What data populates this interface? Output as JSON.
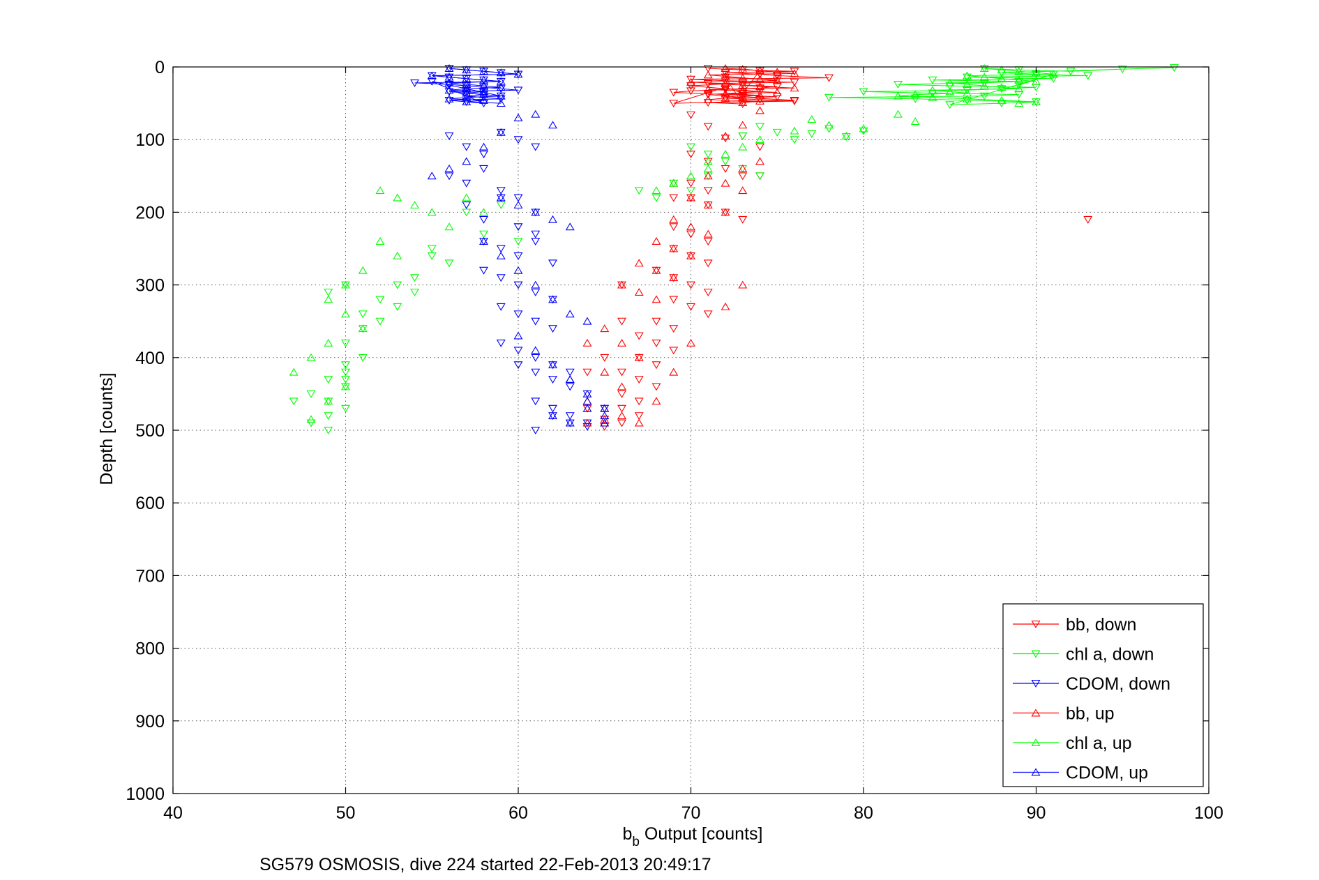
{
  "caption": "SG579 OSMOSIS, dive 224 started 22-Feb-2013 20:49:17",
  "chart_data": {
    "type": "scatter",
    "title": "",
    "xlabel_main": "b",
    "xlabel_sub": "b",
    "xlabel_rest": " Output [counts]",
    "ylabel": "Depth [counts]",
    "xlim": [
      40,
      100
    ],
    "ylim": [
      0,
      1000
    ],
    "y_reversed": true,
    "grid": true,
    "legend_position": "bottom-right",
    "xticks": [
      "40",
      "50",
      "60",
      "70",
      "80",
      "90",
      "100"
    ],
    "yticks": [
      "0",
      "100",
      "200",
      "300",
      "400",
      "500",
      "600",
      "700",
      "800",
      "900",
      "1000"
    ],
    "series": [
      {
        "name": "bb, down",
        "color": "#ff0000",
        "marker": "triangle-down",
        "surface_x": [
          71,
          73,
          76,
          72,
          74,
          75,
          78,
          70,
          72,
          76,
          71,
          73,
          75,
          74,
          72,
          70,
          69,
          71,
          73,
          75,
          72,
          74,
          76,
          71,
          73,
          72,
          75,
          73,
          70,
          72,
          74,
          71,
          73,
          76,
          69,
          72,
          73,
          74
        ],
        "surface_y": [
          2,
          4,
          6,
          8,
          10,
          12,
          15,
          17,
          19,
          21,
          23,
          25,
          27,
          29,
          31,
          33,
          35,
          37,
          39,
          41,
          43,
          45,
          47,
          49,
          51,
          14,
          18,
          22,
          26,
          30,
          34,
          38,
          42,
          46,
          50,
          28,
          36,
          5
        ],
        "x": [
          70,
          71,
          72,
          73,
          74,
          70,
          71,
          72,
          73,
          74,
          70,
          71,
          69,
          70,
          71,
          72,
          73,
          69,
          70,
          71,
          69,
          70,
          71,
          68,
          69,
          70,
          71,
          69,
          70,
          71,
          68,
          69,
          67,
          68,
          69,
          67,
          68,
          66,
          67,
          68,
          66,
          67,
          66,
          67,
          65,
          66,
          66,
          65,
          66,
          64,
          65,
          64,
          93
        ],
        "y": [
          66,
          82,
          98,
          95,
          110,
          120,
          130,
          140,
          150,
          150,
          160,
          170,
          180,
          180,
          190,
          200,
          210,
          220,
          230,
          240,
          250,
          260,
          270,
          280,
          290,
          300,
          310,
          320,
          330,
          340,
          350,
          360,
          370,
          380,
          390,
          400,
          410,
          420,
          430,
          440,
          450,
          460,
          470,
          480,
          485,
          490,
          350,
          400,
          300,
          470,
          495,
          420,
          210
        ]
      },
      {
        "name": "chl a, down",
        "color": "#00ff00",
        "marker": "triangle-down",
        "surface_x": [
          87,
          89,
          92,
          95,
          98,
          88,
          90,
          93,
          86,
          91,
          84,
          89,
          87,
          82,
          85,
          90,
          88,
          86,
          80,
          84,
          89,
          87,
          78,
          83,
          86,
          90,
          88,
          85,
          91,
          89
        ],
        "surface_y": [
          2,
          4,
          6,
          3,
          1,
          8,
          10,
          12,
          14,
          16,
          18,
          20,
          22,
          24,
          26,
          28,
          30,
          32,
          34,
          36,
          38,
          40,
          42,
          44,
          46,
          48,
          50,
          52,
          10,
          25
        ],
        "x": [
          73,
          74,
          75,
          76,
          77,
          78,
          79,
          80,
          70,
          71,
          72,
          73,
          74,
          69,
          70,
          71,
          67,
          68,
          57,
          58,
          59,
          60,
          55,
          56,
          54,
          55,
          53,
          54,
          52,
          53,
          51,
          52,
          50,
          51,
          49,
          50,
          51,
          50,
          49,
          50,
          48,
          49,
          50,
          49,
          47,
          48,
          49,
          50,
          50
        ],
        "y": [
          95,
          82,
          90,
          100,
          92,
          85,
          96,
          88,
          110,
          120,
          130,
          140,
          150,
          160,
          170,
          150,
          170,
          180,
          200,
          230,
          190,
          240,
          250,
          270,
          290,
          260,
          300,
          310,
          320,
          330,
          340,
          350,
          300,
          360,
          310,
          380,
          400,
          420,
          430,
          440,
          450,
          460,
          470,
          480,
          460,
          490,
          500,
          410,
          430
        ]
      },
      {
        "name": "CDOM, down",
        "color": "#0000ff",
        "marker": "triangle-down",
        "surface_x": [
          56,
          57,
          58,
          59,
          60,
          55,
          56,
          57,
          58,
          59,
          54,
          56,
          57,
          58,
          59,
          60,
          56,
          57,
          58,
          57,
          58,
          59,
          56,
          57,
          58,
          55,
          56,
          57,
          58,
          59
        ],
        "surface_y": [
          2,
          4,
          6,
          8,
          10,
          12,
          14,
          16,
          18,
          20,
          22,
          24,
          26,
          28,
          30,
          32,
          34,
          36,
          38,
          40,
          42,
          44,
          46,
          48,
          50,
          20,
          25,
          30,
          35,
          40
        ],
        "x": [
          56,
          57,
          58,
          59,
          60,
          61,
          56,
          57,
          58,
          59,
          60,
          61,
          57,
          58,
          59,
          60,
          61,
          58,
          59,
          60,
          61,
          62,
          58,
          59,
          60,
          61,
          62,
          59,
          60,
          61,
          62,
          59,
          60,
          61,
          62,
          63,
          60,
          61,
          62,
          63,
          64,
          61,
          62,
          63,
          64,
          65,
          61,
          62,
          63,
          64
        ],
        "y": [
          95,
          110,
          120,
          90,
          100,
          110,
          150,
          160,
          140,
          170,
          180,
          200,
          190,
          210,
          180,
          220,
          230,
          240,
          250,
          260,
          240,
          270,
          280,
          290,
          300,
          310,
          320,
          330,
          340,
          350,
          360,
          380,
          390,
          400,
          410,
          420,
          410,
          420,
          430,
          440,
          450,
          460,
          470,
          480,
          490,
          470,
          500,
          480,
          490,
          495
        ]
      },
      {
        "name": "bb, up",
        "color": "#ff0000",
        "marker": "triangle-up",
        "surface_x": [
          72,
          73,
          74,
          75,
          76,
          71,
          72,
          73,
          74,
          75,
          70,
          72,
          73,
          74,
          76,
          71,
          73,
          75,
          72,
          74,
          73,
          72,
          71,
          74,
          73
        ],
        "surface_y": [
          2,
          3,
          5,
          7,
          9,
          11,
          13,
          15,
          17,
          19,
          21,
          23,
          25,
          27,
          29,
          31,
          33,
          35,
          37,
          39,
          41,
          43,
          45,
          47,
          49
        ],
        "x": [
          74,
          73,
          72,
          74,
          73,
          71,
          72,
          73,
          69,
          70,
          71,
          72,
          69,
          70,
          71,
          68,
          69,
          70,
          67,
          68,
          69,
          66,
          67,
          68,
          65,
          66,
          67,
          64,
          65,
          66,
          64,
          65,
          66,
          64,
          65,
          67,
          68,
          69,
          70,
          72,
          73
        ],
        "y": [
          60,
          80,
          95,
          130,
          140,
          150,
          160,
          170,
          160,
          180,
          190,
          200,
          210,
          220,
          230,
          240,
          250,
          260,
          270,
          280,
          290,
          300,
          310,
          320,
          360,
          380,
          400,
          380,
          420,
          440,
          460,
          470,
          480,
          490,
          485,
          490,
          460,
          420,
          380,
          330,
          300
        ]
      },
      {
        "name": "chl a, up",
        "color": "#00ff00",
        "marker": "triangle-up",
        "surface_x": [
          87,
          88,
          89,
          90,
          91,
          86,
          87,
          88,
          89,
          90,
          85,
          86,
          87,
          88,
          89,
          84,
          85,
          86,
          83,
          82,
          84,
          86,
          88,
          90,
          89
        ],
        "surface_y": [
          2,
          4,
          6,
          8,
          10,
          12,
          14,
          16,
          18,
          20,
          22,
          24,
          26,
          28,
          30,
          32,
          34,
          36,
          38,
          40,
          42,
          44,
          46,
          48,
          50
        ],
        "x": [
          83,
          82,
          80,
          79,
          78,
          77,
          76,
          74,
          73,
          72,
          71,
          71,
          70,
          69,
          68,
          57,
          58,
          52,
          53,
          54,
          55,
          56,
          52,
          53,
          51,
          50,
          49,
          50,
          51,
          49,
          48,
          47,
          50,
          49,
          48
        ],
        "y": [
          75,
          65,
          85,
          95,
          80,
          72,
          88,
          100,
          110,
          120,
          130,
          140,
          150,
          160,
          170,
          180,
          200,
          170,
          180,
          190,
          200,
          220,
          240,
          260,
          280,
          300,
          320,
          340,
          360,
          380,
          400,
          420,
          440,
          460,
          485
        ]
      },
      {
        "name": "CDOM, up",
        "color": "#0000ff",
        "marker": "triangle-up",
        "surface_x": [
          56,
          57,
          58,
          59,
          60,
          55,
          56,
          57,
          58,
          59,
          56,
          57,
          58,
          59,
          57,
          56,
          58,
          57,
          58,
          59,
          57,
          56,
          58,
          57,
          59
        ],
        "surface_y": [
          2,
          4,
          6,
          8,
          10,
          12,
          14,
          16,
          18,
          20,
          22,
          24,
          26,
          28,
          30,
          32,
          34,
          36,
          38,
          40,
          42,
          44,
          46,
          48,
          50
        ],
        "x": [
          61,
          62,
          60,
          59,
          58,
          57,
          56,
          55,
          59,
          60,
          61,
          62,
          63,
          58,
          59,
          60,
          61,
          62,
          63,
          64,
          60,
          61,
          62,
          63,
          64,
          65,
          62,
          63,
          64,
          65,
          63,
          64,
          65
        ],
        "y": [
          65,
          80,
          70,
          90,
          110,
          130,
          140,
          150,
          180,
          190,
          200,
          210,
          220,
          240,
          260,
          280,
          300,
          320,
          340,
          350,
          370,
          390,
          410,
          430,
          450,
          470,
          480,
          490,
          470,
          480,
          430,
          460,
          490
        ]
      }
    ]
  }
}
